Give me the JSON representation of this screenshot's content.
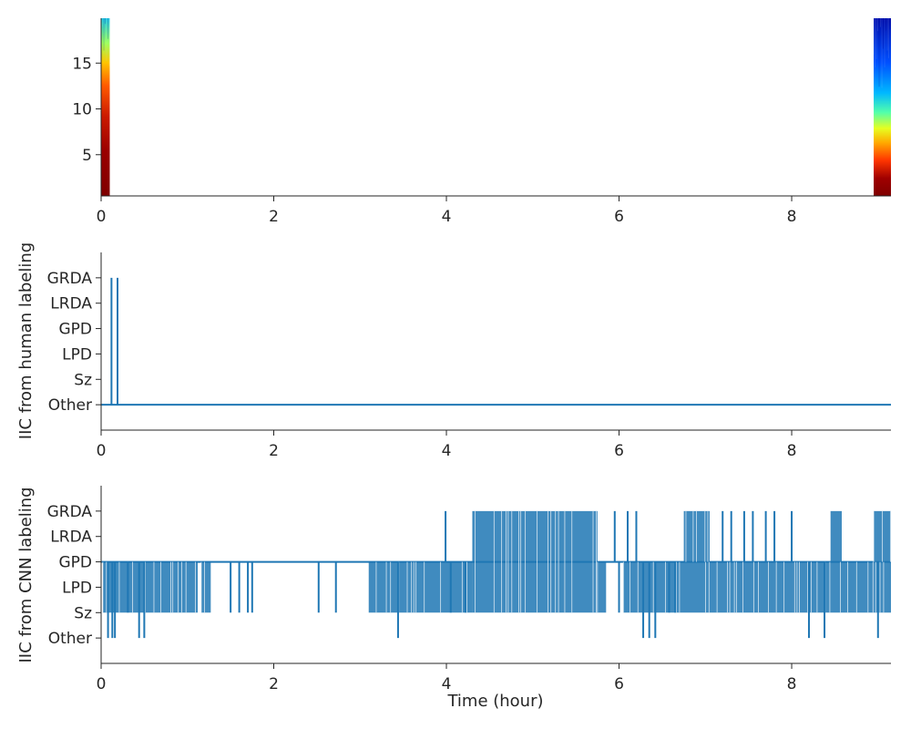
{
  "chart_data": [
    {
      "type": "heatmap",
      "panel": "spectrogram",
      "xlim": [
        0,
        9.15
      ],
      "ylim": [
        0.5,
        19.9
      ],
      "x_ticks": [
        0,
        2,
        4,
        6,
        8
      ],
      "y_ticks": [
        5,
        10,
        15
      ],
      "xlabel": "",
      "ylabel": "",
      "colormap": "jet",
      "data_blocks": [
        {
          "x_start": 0.0,
          "x_end": 0.1,
          "pattern": "high-power across most frequencies (red/dark red), cyan/green near top"
        },
        {
          "x_start": 8.95,
          "x_end": 9.15,
          "pattern": "dark red below ~2, red/orange/yellow 3-7, cyan/blue above"
        }
      ]
    },
    {
      "type": "line",
      "panel": "human-labeling",
      "xlim": [
        0,
        9.15
      ],
      "ylim": [
        -1,
        6
      ],
      "x_ticks": [
        0,
        2,
        4,
        6,
        8
      ],
      "categories": [
        "Other",
        "Sz",
        "LPD",
        "GPD",
        "LRDA",
        "GRDA"
      ],
      "ylabel": "IIC from human labeling",
      "xlabel": "",
      "color": "#1f77b4",
      "baseline_value": "Other",
      "spikes": [
        {
          "x": 0.12,
          "value": "GRDA"
        },
        {
          "x": 0.19,
          "value": "GRDA"
        }
      ]
    },
    {
      "type": "line",
      "panel": "cnn-labeling",
      "xlim": [
        0,
        9.15
      ],
      "ylim": [
        -1,
        6
      ],
      "x_ticks": [
        0,
        2,
        4,
        6,
        8
      ],
      "categories": [
        "Other",
        "Sz",
        "LPD",
        "GPD",
        "LRDA",
        "GRDA"
      ],
      "ylabel": "IIC from CNN labeling",
      "xlabel": "Time (hour)",
      "color": "#1f77b4",
      "baseline_value": "GPD",
      "dense_segments": [
        {
          "x_start": 0.02,
          "x_end": 1.12,
          "min": "Sz",
          "max": "GPD"
        },
        {
          "x_start": 1.16,
          "x_end": 1.27,
          "min": "Sz",
          "max": "GPD"
        },
        {
          "x_start": 3.1,
          "x_end": 4.3,
          "min": "Sz",
          "max": "GPD"
        },
        {
          "x_start": 4.3,
          "x_end": 5.75,
          "min": "Sz",
          "max": "GRDA"
        },
        {
          "x_start": 5.75,
          "x_end": 5.85,
          "min": "Sz",
          "max": "GPD"
        },
        {
          "x_start": 6.05,
          "x_end": 9.15,
          "min": "Sz",
          "max": "GPD"
        },
        {
          "x_start": 6.75,
          "x_end": 7.05,
          "min": "GPD",
          "max": "GRDA"
        },
        {
          "x_start": 8.45,
          "x_end": 8.58,
          "min": "GPD",
          "max": "GRDA"
        },
        {
          "x_start": 8.95,
          "x_end": 9.15,
          "min": "GPD",
          "max": "GRDA"
        }
      ],
      "spikes": [
        {
          "x": 0.08,
          "value": "Other"
        },
        {
          "x": 0.13,
          "value": "Other"
        },
        {
          "x": 0.16,
          "value": "Other"
        },
        {
          "x": 0.44,
          "value": "Other"
        },
        {
          "x": 0.5,
          "value": "Other"
        },
        {
          "x": 0.31,
          "value": "Sz"
        },
        {
          "x": 1.5,
          "value": "Sz"
        },
        {
          "x": 1.6,
          "value": "Sz"
        },
        {
          "x": 1.7,
          "value": "Sz"
        },
        {
          "x": 1.75,
          "value": "Sz"
        },
        {
          "x": 2.52,
          "value": "Sz"
        },
        {
          "x": 2.72,
          "value": "Sz"
        },
        {
          "x": 3.44,
          "value": "Other"
        },
        {
          "x": 3.99,
          "value": "GRDA"
        },
        {
          "x": 4.05,
          "value": "Sz"
        },
        {
          "x": 4.22,
          "value": "Sz"
        },
        {
          "x": 6.28,
          "value": "Other"
        },
        {
          "x": 6.35,
          "value": "Other"
        },
        {
          "x": 6.42,
          "value": "Other"
        },
        {
          "x": 6.58,
          "value": "Sz"
        },
        {
          "x": 6.65,
          "value": "Sz"
        },
        {
          "x": 5.95,
          "value": "GRDA"
        },
        {
          "x": 6.0,
          "value": "Sz"
        },
        {
          "x": 6.1,
          "value": "GRDA"
        },
        {
          "x": 6.2,
          "value": "GRDA"
        },
        {
          "x": 7.2,
          "value": "GRDA"
        },
        {
          "x": 7.3,
          "value": "GRDA"
        },
        {
          "x": 7.45,
          "value": "GRDA"
        },
        {
          "x": 7.55,
          "value": "GRDA"
        },
        {
          "x": 7.7,
          "value": "GRDA"
        },
        {
          "x": 7.8,
          "value": "GRDA"
        },
        {
          "x": 8.0,
          "value": "GRDA"
        },
        {
          "x": 8.2,
          "value": "Other"
        },
        {
          "x": 8.38,
          "value": "Other"
        },
        {
          "x": 9.0,
          "value": "Other"
        }
      ]
    }
  ]
}
